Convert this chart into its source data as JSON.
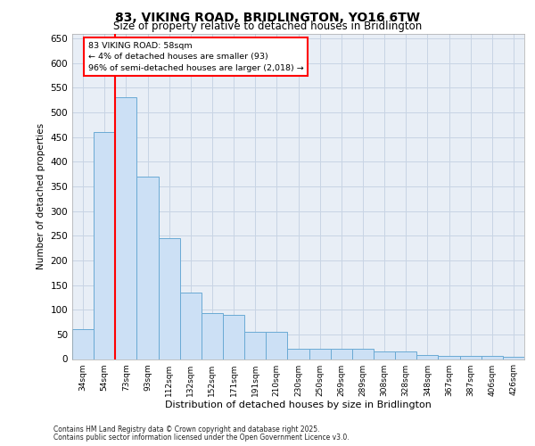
{
  "title_line1": "83, VIKING ROAD, BRIDLINGTON, YO16 6TW",
  "title_line2": "Size of property relative to detached houses in Bridlington",
  "xlabel": "Distribution of detached houses by size in Bridlington",
  "ylabel": "Number of detached properties",
  "categories": [
    "34sqm",
    "54sqm",
    "73sqm",
    "93sqm",
    "112sqm",
    "132sqm",
    "152sqm",
    "171sqm",
    "191sqm",
    "210sqm",
    "230sqm",
    "250sqm",
    "269sqm",
    "289sqm",
    "308sqm",
    "328sqm",
    "348sqm",
    "367sqm",
    "387sqm",
    "406sqm",
    "426sqm"
  ],
  "values": [
    60,
    460,
    530,
    370,
    245,
    135,
    93,
    90,
    55,
    55,
    20,
    20,
    20,
    20,
    15,
    15,
    8,
    6,
    6,
    6,
    5
  ],
  "bar_color": "#cce0f5",
  "bar_edge_color": "#6aaad4",
  "grid_color": "#c8d4e4",
  "background_color": "#e8eef6",
  "red_line_x": 1.5,
  "annotation_text": "83 VIKING ROAD: 58sqm\n← 4% of detached houses are smaller (93)\n96% of semi-detached houses are larger (2,018) →",
  "ylim_max": 660,
  "yticks": [
    0,
    50,
    100,
    150,
    200,
    250,
    300,
    350,
    400,
    450,
    500,
    550,
    600,
    650
  ],
  "footer_line1": "Contains HM Land Registry data © Crown copyright and database right 2025.",
  "footer_line2": "Contains public sector information licensed under the Open Government Licence v3.0."
}
